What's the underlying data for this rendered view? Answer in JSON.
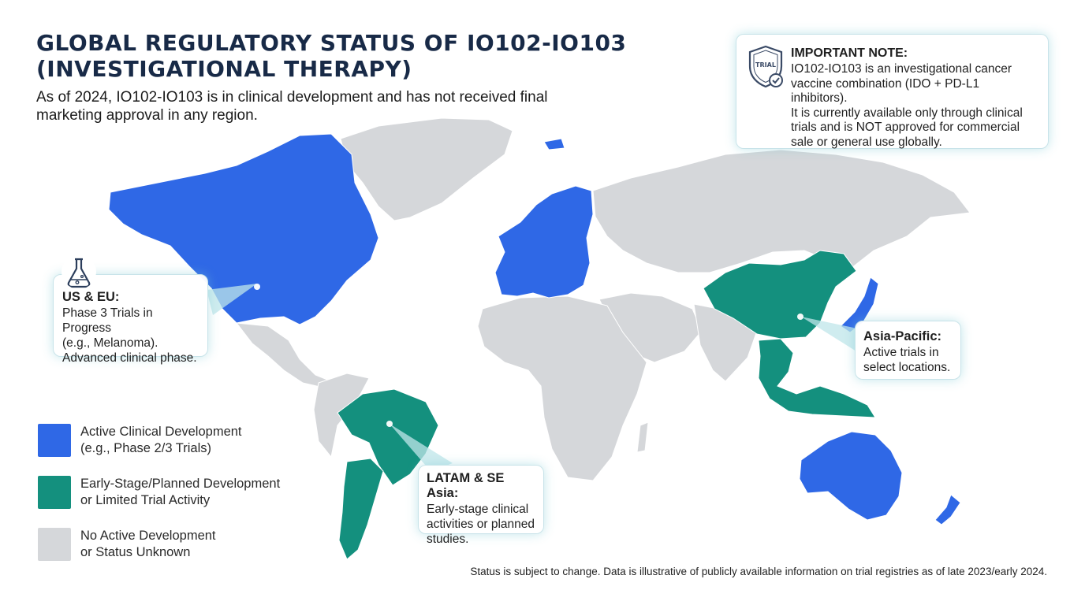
{
  "title_lines": [
    "GLOBAL REGULATORY STATUS OF IO102-IO103",
    "(INVESTIGATIONAL THERAPY)"
  ],
  "subtitle_lines": [
    "As of 2024, IO102-IO103 is in clinical development and has not received final",
    "marketing approval in any region."
  ],
  "colors": {
    "active": "#2f68e6",
    "early": "#14907e",
    "none": "#d5d7da",
    "title": "#182a47",
    "callout_glow": "#9fd8df"
  },
  "important_note": {
    "icon": "shield-trial-icon",
    "icon_text": "TRIAL",
    "heading": "IMPORTANT NOTE:",
    "lines": [
      "IO102-IO103 is an investigational cancer",
      "vaccine combination (IDO + PD-L1 inhibitors).",
      "It is currently available only through clinical",
      "trials and is NOT approved for commercial",
      "sale or general use globally."
    ]
  },
  "callouts": {
    "us_eu": {
      "icon": "flask-icon",
      "heading": "US & EU:",
      "lines": [
        "Phase 3 Trials in Progress",
        "(e.g., Melanoma).",
        "Advanced clinical phase."
      ]
    },
    "asia_pacific": {
      "heading": "Asia-Pacific:",
      "lines": [
        "Active trials in",
        "select locations."
      ]
    },
    "latam_se_asia": {
      "heading": "LATAM & SE Asia:",
      "lines": [
        "Early-stage clinical",
        "activities or planned",
        "studies."
      ]
    }
  },
  "regions": [
    {
      "name": "North America",
      "status": "active"
    },
    {
      "name": "Europe",
      "status": "active"
    },
    {
      "name": "Japan",
      "status": "active"
    },
    {
      "name": "Australia",
      "status": "active"
    },
    {
      "name": "New Zealand",
      "status": "active"
    },
    {
      "name": "China",
      "status": "early"
    },
    {
      "name": "Southeast Asia",
      "status": "early"
    },
    {
      "name": "Brazil",
      "status": "early"
    },
    {
      "name": "Argentina",
      "status": "early"
    },
    {
      "name": "Chile",
      "status": "early"
    },
    {
      "name": "Greenland",
      "status": "none"
    },
    {
      "name": "Russia & Central Asia",
      "status": "none"
    },
    {
      "name": "Middle East",
      "status": "none"
    },
    {
      "name": "Africa",
      "status": "none"
    },
    {
      "name": "South Asia",
      "status": "none"
    }
  ],
  "legend": [
    {
      "key": "active",
      "lines": [
        "Active Clinical Development",
        "(e.g., Phase 2/3 Trials)"
      ]
    },
    {
      "key": "early",
      "lines": [
        "Early-Stage/Planned Development",
        "or Limited Trial Activity"
      ]
    },
    {
      "key": "none",
      "lines": [
        "No Active Development",
        "or Status Unknown"
      ]
    }
  ],
  "footnote": "Status is subject to change. Data is illustrative of publicly available information on trial registries as of late 2023/early 2024."
}
